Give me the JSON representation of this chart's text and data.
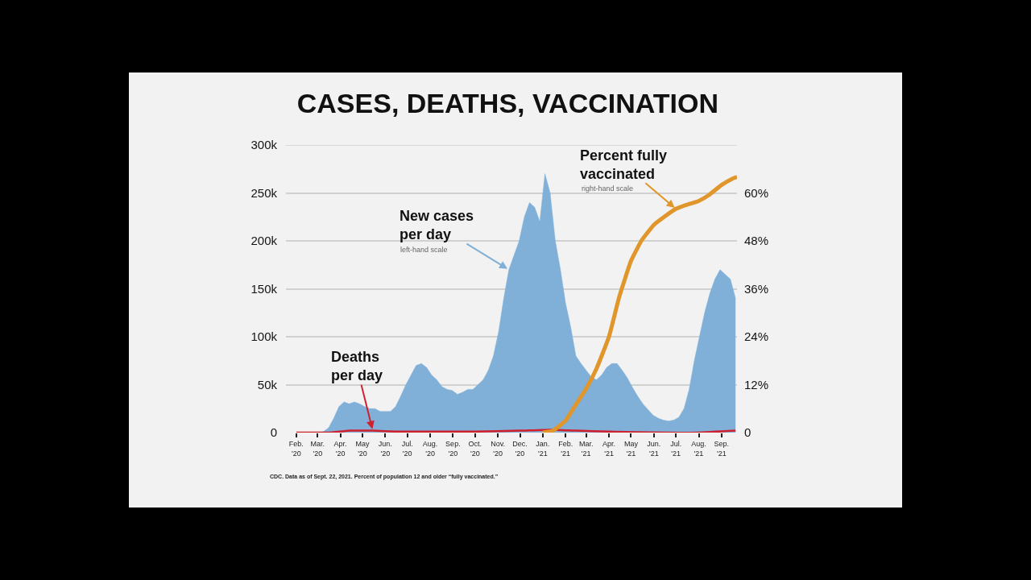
{
  "chart_data": {
    "type": "area",
    "title": "CASES, DEATHS, VACCINATION",
    "xlim": [
      "2020-01-18",
      "2021-09-22"
    ],
    "xticks": [
      {
        "value": "2020-02-01",
        "label": "Feb.\n'20"
      },
      {
        "value": "2020-03-01",
        "label": "Mar.\n'20"
      },
      {
        "value": "2020-04-01",
        "label": "Apr.\n'20"
      },
      {
        "value": "2020-05-01",
        "label": "May\n'20"
      },
      {
        "value": "2020-06-01",
        "label": "Jun.\n'20"
      },
      {
        "value": "2020-07-01",
        "label": "Jul.\n'20"
      },
      {
        "value": "2020-08-01",
        "label": "Aug.\n'20"
      },
      {
        "value": "2020-09-01",
        "label": "Sep.\n'20"
      },
      {
        "value": "2020-10-01",
        "label": "Oct.\n'20"
      },
      {
        "value": "2020-11-01",
        "label": "Nov.\n'20"
      },
      {
        "value": "2020-12-01",
        "label": "Dec.\n'20"
      },
      {
        "value": "2021-01-01",
        "label": "Jan.\n'21"
      },
      {
        "value": "2021-02-01",
        "label": "Feb.\n'21"
      },
      {
        "value": "2021-03-01",
        "label": "Mar.\n'21"
      },
      {
        "value": "2021-04-01",
        "label": "Apr.\n'21"
      },
      {
        "value": "2021-05-01",
        "label": "May\n'21"
      },
      {
        "value": "2021-06-01",
        "label": "Jun.\n'21"
      },
      {
        "value": "2021-07-01",
        "label": "Jul.\n'21"
      },
      {
        "value": "2021-08-01",
        "label": "Aug.\n'21"
      },
      {
        "value": "2021-09-01",
        "label": "Sep.\n'21"
      }
    ],
    "ylim": [
      0,
      300000
    ],
    "yticks": [
      0,
      {
        "value": 50000,
        "label": "50k"
      },
      {
        "value": 100000,
        "label": "100k"
      },
      {
        "value": 150000,
        "label": "150k"
      },
      {
        "value": 200000,
        "label": "200k"
      },
      {
        "value": 250000,
        "label": "250k"
      },
      {
        "value": 300000,
        "label": "300k"
      }
    ],
    "y2lim": [
      0,
      72
    ],
    "y2ticks": [
      0,
      {
        "value": 12,
        "label": "12%"
      },
      {
        "value": 24,
        "label": "24%"
      },
      {
        "value": 36,
        "label": "36%"
      },
      {
        "value": 48,
        "label": "48%"
      },
      {
        "value": 60,
        "label": "60%"
      },
      {
        "value": 72,
        "label": null
      }
    ],
    "grid": "y",
    "series": [
      {
        "name": "New cases\nper day",
        "color": "#80b0d8",
        "x": [
          "2020-03-02",
          "2020-03-09",
          "2020-03-16",
          "2020-03-23",
          "2020-03-30",
          "2020-04-06",
          "2020-04-13",
          "2020-04-20",
          "2020-04-27",
          "2020-05-04",
          "2020-05-11",
          "2020-05-18",
          "2020-05-25",
          "2020-06-01",
          "2020-06-08",
          "2020-06-15",
          "2020-06-22",
          "2020-06-29",
          "2020-07-06",
          "2020-07-13",
          "2020-07-20",
          "2020-07-27",
          "2020-08-03",
          "2020-08-10",
          "2020-08-17",
          "2020-08-24",
          "2020-08-31",
          "2020-09-07",
          "2020-09-14",
          "2020-09-21",
          "2020-09-28",
          "2020-10-05",
          "2020-10-12",
          "2020-10-19",
          "2020-10-26",
          "2020-11-02",
          "2020-11-09",
          "2020-11-16",
          "2020-11-23",
          "2020-11-30",
          "2020-12-07",
          "2020-12-14",
          "2020-12-21",
          "2020-12-28",
          "2021-01-04",
          "2021-01-11",
          "2021-01-18",
          "2021-01-25",
          "2021-02-01",
          "2021-02-08",
          "2021-02-15",
          "2021-02-22",
          "2021-03-01",
          "2021-03-08",
          "2021-03-15",
          "2021-03-22",
          "2021-03-29",
          "2021-04-05",
          "2021-04-12",
          "2021-04-19",
          "2021-04-26",
          "2021-05-03",
          "2021-05-10",
          "2021-05-17",
          "2021-05-24",
          "2021-05-31",
          "2021-06-07",
          "2021-06-14",
          "2021-06-21",
          "2021-06-28",
          "2021-07-05",
          "2021-07-12",
          "2021-07-19",
          "2021-07-26",
          "2021-08-02",
          "2021-08-09",
          "2021-08-16",
          "2021-08-23",
          "2021-08-30",
          "2021-09-06",
          "2021-09-13",
          "2021-09-20"
        ],
        "values": [
          0,
          1000,
          5000,
          15000,
          27000,
          32000,
          30000,
          32000,
          30000,
          27000,
          25000,
          25000,
          22000,
          22000,
          22000,
          27000,
          38000,
          50000,
          60000,
          70000,
          72000,
          68000,
          60000,
          55000,
          48000,
          45000,
          44000,
          40000,
          42000,
          45000,
          45000,
          50000,
          55000,
          65000,
          80000,
          105000,
          140000,
          170000,
          185000,
          200000,
          225000,
          240000,
          235000,
          220000,
          270000,
          250000,
          200000,
          170000,
          135000,
          110000,
          80000,
          72000,
          65000,
          58000,
          55000,
          60000,
          68000,
          72000,
          72000,
          65000,
          57000,
          47000,
          38000,
          30000,
          24000,
          18000,
          15000,
          13000,
          12000,
          13000,
          16000,
          25000,
          45000,
          75000,
          100000,
          125000,
          145000,
          160000,
          170000,
          165000,
          160000,
          140000
        ]
      },
      {
        "type": "line",
        "name": "Deaths\nper day",
        "color": "#d0202e",
        "x": [
          "2020-02-01",
          "2020-03-15",
          "2020-04-15",
          "2020-05-15",
          "2020-06-15",
          "2020-08-01",
          "2020-10-01",
          "2020-12-01",
          "2021-01-12",
          "2021-02-15",
          "2021-04-01",
          "2021-06-15",
          "2021-08-01",
          "2021-09-20"
        ],
        "values": [
          0,
          0,
          2000,
          2000,
          1000,
          1000,
          1000,
          2000,
          3000,
          2000,
          1000,
          0,
          0,
          2000
        ]
      },
      {
        "type": "line",
        "name": "Percent fully\nvaccinated",
        "axis": "y2",
        "color": "#e0962a",
        "x": [
          "2021-01-01",
          "2021-01-15",
          "2021-02-01",
          "2021-02-15",
          "2021-03-01",
          "2021-03-15",
          "2021-04-01",
          "2021-04-15",
          "2021-05-01",
          "2021-05-15",
          "2021-06-01",
          "2021-06-15",
          "2021-07-01",
          "2021-07-15",
          "2021-08-01",
          "2021-08-15",
          "2021-09-01",
          "2021-09-15",
          "2021-09-22"
        ],
        "values": [
          0,
          0.5,
          3,
          7,
          11,
          16,
          24,
          34,
          43,
          48,
          52,
          54,
          56,
          57,
          58,
          59.5,
          62,
          63.5,
          64
        ]
      }
    ],
    "annotations": [
      "left-hand scale",
      "right-hand scale",
      "CDC. Data as of Sept. 22, 2021. Percent of population 12 and older “fully vaccinated.”"
    ]
  }
}
